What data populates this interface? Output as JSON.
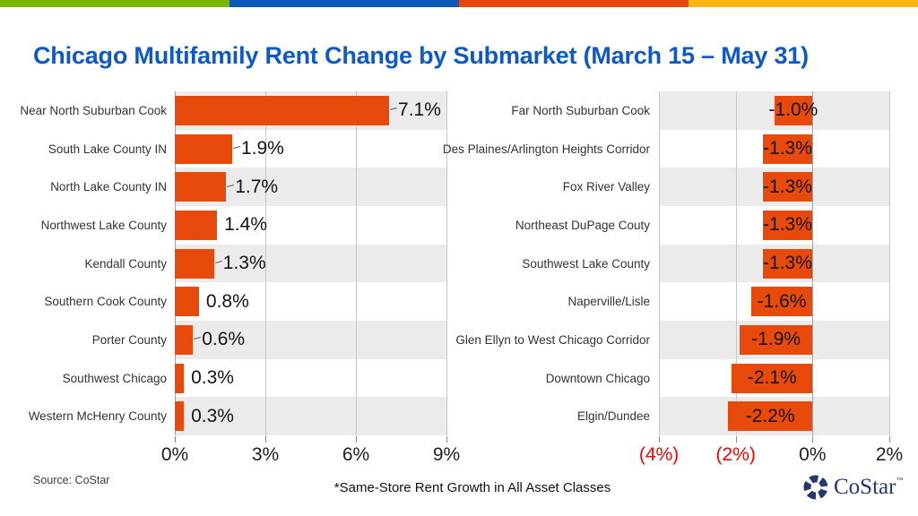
{
  "title": "Chicago Multifamily Rent Change by Submarket (March 15 – May 31)",
  "accent_stripe": [
    "#7AB800",
    "#0C5AB8",
    "#E8470B",
    "#FFB613"
  ],
  "colors": {
    "title": "#0E59C8",
    "bar": "#E84A0B",
    "band": "#EBEBEB",
    "grid": "#C6C6C6",
    "axis": "#A3A3A3",
    "tick_red": "#FF0000",
    "tick_black": "#1F1F1F",
    "logo_navy": "#26366E"
  },
  "chart_data": [
    {
      "type": "bar",
      "orientation": "horizontal",
      "title": "",
      "categories": [
        "Near North Suburban Cook",
        "South Lake County IN",
        "North Lake County IN",
        "Northwest Lake County",
        "Kendall County",
        "Southern Cook County",
        "Porter County",
        "Southwest Chicago",
        "Western McHenry County"
      ],
      "values": [
        7.1,
        1.9,
        1.7,
        1.4,
        1.3,
        0.8,
        0.6,
        0.3,
        0.3
      ],
      "value_labels": [
        "7.1%",
        "1.9%",
        "1.7%",
        "1.4%",
        "1.3%",
        "0.8%",
        "0.6%",
        "0.3%",
        "0.3%"
      ],
      "leader_lines": [
        true,
        true,
        true,
        false,
        true,
        false,
        true,
        false,
        false
      ],
      "xlim": [
        0,
        9
      ],
      "x_ticks": [
        {
          "label": "0%",
          "value": 0,
          "red": false
        },
        {
          "label": "3%",
          "value": 3,
          "red": false
        },
        {
          "label": "6%",
          "value": 6,
          "red": false
        },
        {
          "label": "9%",
          "value": 9,
          "red": false
        }
      ],
      "gridlines": [
        3,
        6,
        9
      ],
      "axis_at": 0,
      "legend": "none",
      "value_label_position": "outside-end"
    },
    {
      "type": "bar",
      "orientation": "horizontal",
      "title": "",
      "categories": [
        "Far North Suburban Cook",
        "Des Plaines/Arlington Heights Corridor",
        "Fox River Valley",
        "Northeast DuPage Couty",
        "Southwest Lake County",
        "Naperville/Lisle",
        "Glen Ellyn to West Chicago Corridor",
        "Downtown Chicago",
        "Elgin/Dundee"
      ],
      "values": [
        -1.0,
        -1.3,
        -1.3,
        -1.3,
        -1.3,
        -1.6,
        -1.9,
        -2.1,
        -2.2
      ],
      "value_labels": [
        "-1.0%",
        "-1.3%",
        "-1.3%",
        "-1.3%",
        "-1.3%",
        "-1.6%",
        "-1.9%",
        "-2.1%",
        "-2.2%"
      ],
      "leader_lines": [
        false,
        false,
        false,
        false,
        false,
        false,
        false,
        false,
        false
      ],
      "xlim": [
        -4,
        2
      ],
      "x_ticks": [
        {
          "label": "(4%)",
          "value": -4,
          "red": true
        },
        {
          "label": "(2%)",
          "value": -2,
          "red": true
        },
        {
          "label": "0%",
          "value": 0,
          "red": false
        },
        {
          "label": "2%",
          "value": 2,
          "red": false
        }
      ],
      "gridlines": [
        -4,
        -2,
        2
      ],
      "axis_at": 0,
      "legend": "none",
      "value_label_position": "inside-center"
    }
  ],
  "footer": {
    "source": "Source: CoStar",
    "footnote": "*Same-Store Rent Growth in All Asset Classes",
    "logo_text": "CoStar",
    "logo_tm": "™"
  }
}
